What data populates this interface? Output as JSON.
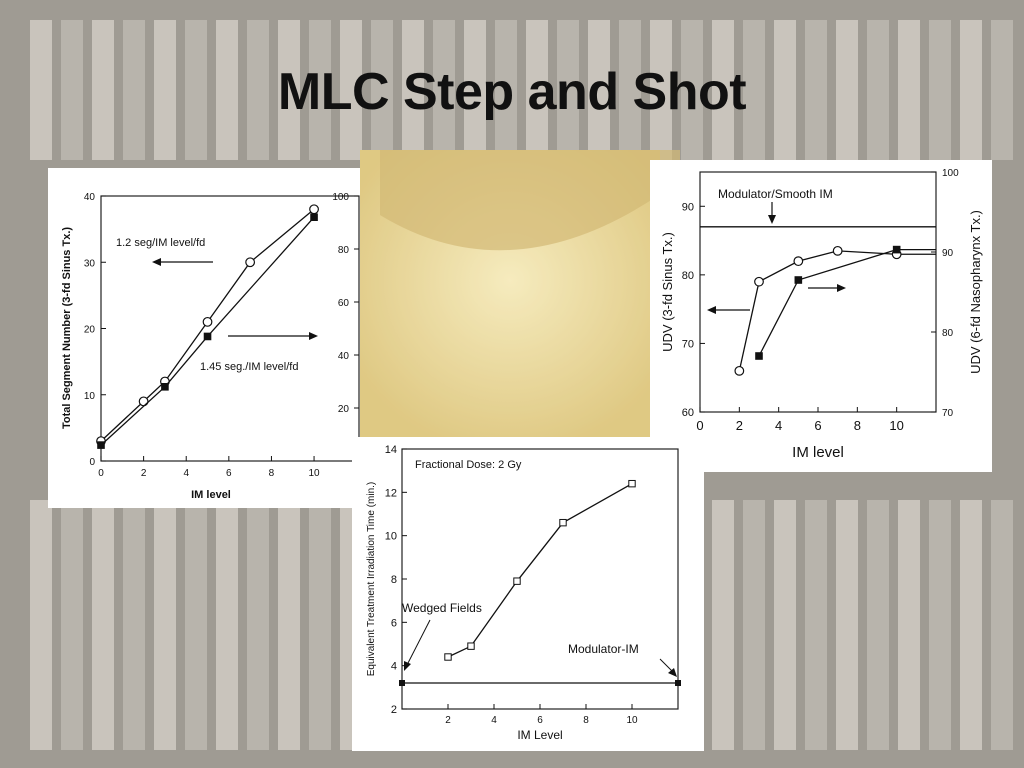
{
  "slide": {
    "title": "MLC Step and Shot"
  },
  "chart_data": [
    {
      "id": "segments",
      "type": "line",
      "xlabel": "IM  level",
      "ylabel": "Total  Segment  Number  (3-fd  Sinus  Tx.)",
      "xlim": [
        0,
        11
      ],
      "ylim": [
        0,
        40
      ],
      "y2lim": [
        0,
        100
      ],
      "xticks": [
        "0",
        "2",
        "4",
        "6",
        "8",
        "10"
      ],
      "yticks": [
        "0",
        "10",
        "20",
        "30",
        "40"
      ],
      "y2ticks": [
        "20",
        "40",
        "60",
        "80",
        "100"
      ],
      "series": [
        {
          "marker": "circle-open",
          "axis": "left",
          "x": [
            0,
            2,
            3,
            5,
            7,
            10
          ],
          "y": [
            3,
            9,
            12,
            21,
            30,
            38
          ]
        },
        {
          "marker": "square-filled",
          "axis": "right",
          "x": [
            0,
            3,
            5,
            10
          ],
          "y": [
            6,
            28,
            47,
            92
          ]
        }
      ],
      "annotations": [
        {
          "text": "1.2  seg/IM  level/fd",
          "arrow": "left"
        },
        {
          "text": "1.45  seg./IM  level/fd",
          "arrow": "right"
        }
      ]
    },
    {
      "id": "udv",
      "type": "line",
      "xlabel": "IM level",
      "ylabel": "UDV  (3-fd Sinus  Tx.)",
      "y2label": "UDV  (6-fd  Nasopharynx  Tx.)",
      "xlim": [
        0,
        12
      ],
      "ylim": [
        60,
        95
      ],
      "y2lim": [
        70,
        100
      ],
      "xticks": [
        "0",
        "2",
        "4",
        "6",
        "8",
        "10"
      ],
      "yticks": [
        "60",
        "70",
        "80",
        "90"
      ],
      "y2ticks": [
        "70",
        "80",
        "90",
        "100"
      ],
      "reference_line": {
        "label": "Modulator/Smooth  IM",
        "y": 87
      },
      "series": [
        {
          "marker": "circle-open",
          "axis": "left",
          "x": [
            2,
            3,
            5,
            7,
            10
          ],
          "y": [
            66,
            79,
            82,
            83.5,
            83
          ]
        },
        {
          "marker": "square-filled",
          "axis": "right",
          "x": [
            3,
            5,
            10
          ],
          "y": [
            77,
            86.5,
            90.3
          ]
        }
      ]
    },
    {
      "id": "treatment-time",
      "type": "line",
      "title": "Fractional Dose: 2 Gy",
      "xlabel": "IM Level",
      "ylabel": "Equivalent Treatment Irradiation Time (min.)",
      "xlim": [
        0,
        12
      ],
      "ylim": [
        2,
        14
      ],
      "xticks": [
        "2",
        "4",
        "6",
        "8",
        "10"
      ],
      "yticks": [
        "2",
        "4",
        "6",
        "8",
        "10",
        "12",
        "14"
      ],
      "series": [
        {
          "marker": "square-open",
          "x": [
            2,
            3,
            5,
            7,
            10
          ],
          "y": [
            4.4,
            4.9,
            7.9,
            10.6,
            12.4
          ]
        }
      ],
      "reference_line": {
        "y": 3.2
      },
      "annotations": [
        {
          "text": "Wedged Fields"
        },
        {
          "text": "Modulator-IM"
        }
      ]
    }
  ],
  "colors": {
    "background_tint": "#8a857c",
    "gold": "#e8d48a",
    "ink": "#111111"
  }
}
